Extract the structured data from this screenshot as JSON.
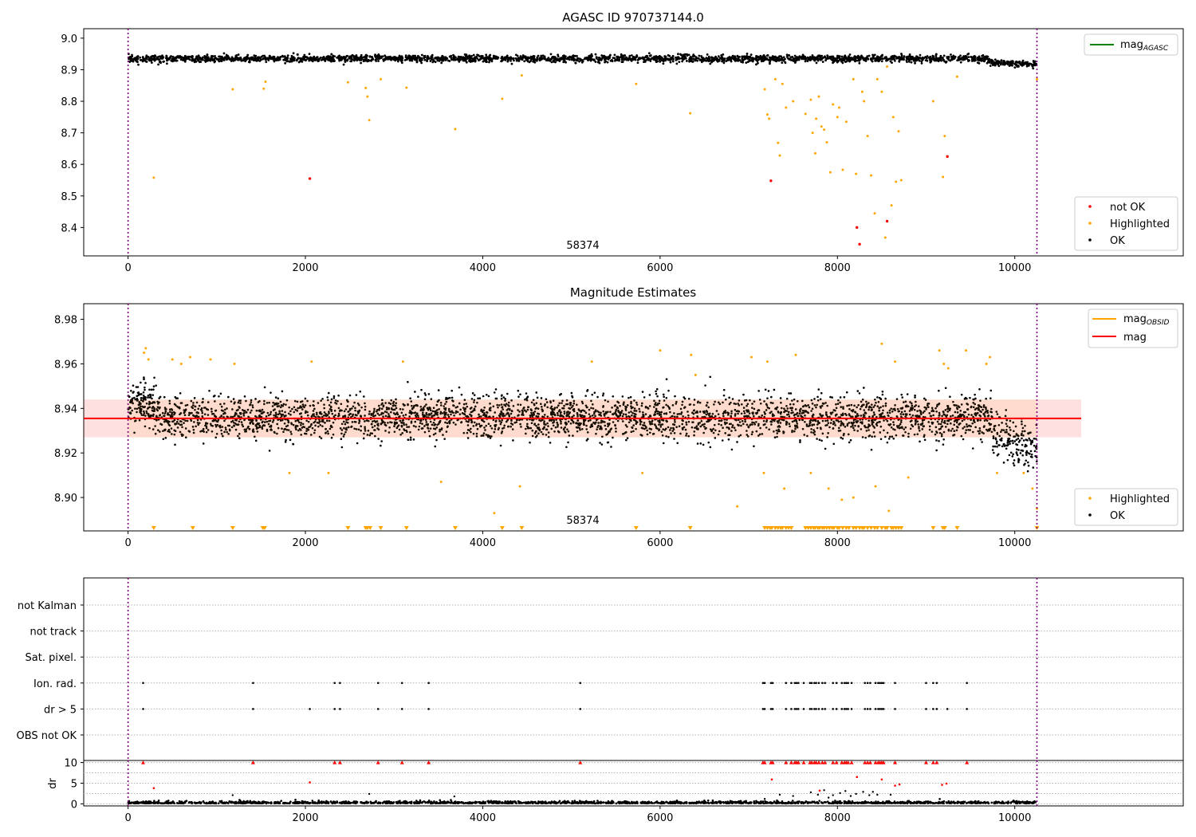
{
  "chart_data": [
    {
      "type": "scatter",
      "title": "AGASC ID 970737144.0",
      "xlim": [
        -500,
        11900
      ],
      "ylim": [
        8.31,
        9.03
      ],
      "xticks": [
        0,
        2000,
        4000,
        6000,
        8000,
        10000
      ],
      "yticks": [
        8.4,
        8.5,
        8.6,
        8.7,
        8.8,
        8.9,
        9.0
      ],
      "vlines": [
        0,
        10250
      ],
      "annotation": {
        "text": "58374",
        "x": 5100,
        "y": 8.335
      },
      "line_legend": [
        {
          "name": "mag",
          "subscript": "AGASC",
          "color": "#008000"
        }
      ],
      "series": [
        {
          "name": "not OK",
          "color": "#ff0000",
          "points": [
            [
              2050,
              8.555
            ],
            [
              7250,
              8.548
            ],
            [
              8220,
              8.4
            ],
            [
              8250,
              8.347
            ],
            [
              8560,
              8.42
            ],
            [
              9240,
              8.625
            ]
          ]
        },
        {
          "name": "Highlighted",
          "color": "#ffa500",
          "points": [
            [
              290,
              8.558
            ],
            [
              1180,
              8.838
            ],
            [
              1530,
              8.84
            ],
            [
              1550,
              8.862
            ],
            [
              2480,
              8.86
            ],
            [
              2680,
              8.842
            ],
            [
              2700,
              8.815
            ],
            [
              2720,
              8.74
            ],
            [
              2850,
              8.87
            ],
            [
              3140,
              8.843
            ],
            [
              3690,
              8.712
            ],
            [
              4220,
              8.808
            ],
            [
              4440,
              8.882
            ],
            [
              5730,
              8.855
            ],
            [
              6340,
              8.762
            ],
            [
              7180,
              8.838
            ],
            [
              7210,
              8.758
            ],
            [
              7230,
              8.745
            ],
            [
              7300,
              8.87
            ],
            [
              7330,
              8.668
            ],
            [
              7350,
              8.628
            ],
            [
              7380,
              8.855
            ],
            [
              7420,
              8.78
            ],
            [
              7500,
              8.8
            ],
            [
              7640,
              8.76
            ],
            [
              7700,
              8.805
            ],
            [
              7720,
              8.7
            ],
            [
              7750,
              8.635
            ],
            [
              7760,
              8.745
            ],
            [
              7790,
              8.815
            ],
            [
              7820,
              8.72
            ],
            [
              7850,
              8.71
            ],
            [
              7880,
              8.67
            ],
            [
              7920,
              8.575
            ],
            [
              7950,
              8.79
            ],
            [
              8000,
              8.75
            ],
            [
              8020,
              8.78
            ],
            [
              8060,
              8.583
            ],
            [
              8100,
              8.735
            ],
            [
              8180,
              8.87
            ],
            [
              8210,
              8.57
            ],
            [
              8280,
              8.83
            ],
            [
              8300,
              8.8
            ],
            [
              8340,
              8.69
            ],
            [
              8380,
              8.565
            ],
            [
              8420,
              8.445
            ],
            [
              8450,
              8.87
            ],
            [
              8500,
              8.83
            ],
            [
              8540,
              8.368
            ],
            [
              8560,
              8.91
            ],
            [
              8610,
              8.47
            ],
            [
              8630,
              8.75
            ],
            [
              8660,
              8.545
            ],
            [
              8690,
              8.705
            ],
            [
              8720,
              8.55
            ],
            [
              9080,
              8.8
            ],
            [
              9190,
              8.56
            ],
            [
              9210,
              8.69
            ],
            [
              9350,
              8.878
            ],
            [
              10250,
              8.87
            ]
          ]
        }
      ],
      "legend": [
        "not OK",
        "Highlighted",
        "OK"
      ]
    },
    {
      "type": "scatter",
      "title": "Magnitude Estimates",
      "xlim": [
        -500,
        11900
      ],
      "ylim": [
        8.885,
        8.987
      ],
      "xticks": [
        0,
        2000,
        4000,
        6000,
        8000,
        10000
      ],
      "yticks": [
        8.9,
        8.92,
        8.94,
        8.96,
        8.98
      ],
      "vlines": [
        0,
        10250
      ],
      "annotation": {
        "text": "58374",
        "x": 5100,
        "y": 8.8885
      },
      "mag": {
        "value": 8.9355,
        "band": [
          8.927,
          8.944
        ],
        "x_range": [
          -500,
          10750
        ],
        "color": "#ff0000"
      },
      "line_legend": [
        {
          "name": "mag",
          "subscript": "OBSID",
          "color": "#ffa500"
        },
        {
          "name": "mag",
          "subscript": "",
          "color": "#ff0000"
        }
      ],
      "series": [
        {
          "name": "Highlighted",
          "color": "#ffa500",
          "points": [
            [
              180,
              8.965
            ],
            [
              200,
              8.967
            ],
            [
              230,
              8.962
            ],
            [
              500,
              8.962
            ],
            [
              600,
              8.96
            ],
            [
              700,
              8.963
            ],
            [
              930,
              8.962
            ],
            [
              1200,
              8.96
            ],
            [
              1820,
              8.911
            ],
            [
              2070,
              8.961
            ],
            [
              2260,
              8.911
            ],
            [
              3100,
              8.961
            ],
            [
              3530,
              8.907
            ],
            [
              4130,
              8.893
            ],
            [
              4420,
              8.905
            ],
            [
              5230,
              8.961
            ],
            [
              5800,
              8.911
            ],
            [
              6000,
              8.966
            ],
            [
              6350,
              8.964
            ],
            [
              6400,
              8.955
            ],
            [
              6870,
              8.896
            ],
            [
              7030,
              8.963
            ],
            [
              7170,
              8.911
            ],
            [
              7210,
              8.961
            ],
            [
              7400,
              8.904
            ],
            [
              7530,
              8.964
            ],
            [
              7700,
              8.911
            ],
            [
              7900,
              8.904
            ],
            [
              8050,
              8.899
            ],
            [
              8180,
              8.9
            ],
            [
              8430,
              8.905
            ],
            [
              8500,
              8.969
            ],
            [
              8580,
              8.894
            ],
            [
              8650,
              8.961
            ],
            [
              8800,
              8.909
            ],
            [
              9150,
              8.966
            ],
            [
              9200,
              8.96
            ],
            [
              9250,
              8.958
            ],
            [
              9450,
              8.966
            ],
            [
              9680,
              8.96
            ],
            [
              9720,
              8.963
            ],
            [
              9800,
              8.911
            ],
            [
              10100,
              8.911
            ],
            [
              10200,
              8.904
            ],
            [
              10250,
              8.895
            ]
          ]
        },
        {
          "name": "Highlighted (below range)",
          "color": "#ffa500",
          "x": [
            290,
            730,
            1180,
            1520,
            1540,
            2480,
            2680,
            2700,
            2730,
            2850,
            3140,
            3690,
            4220,
            4440,
            5730,
            6340,
            7180,
            7210,
            7240,
            7260,
            7300,
            7330,
            7360,
            7380,
            7420,
            7450,
            7480,
            7640,
            7670,
            7700,
            7730,
            7750,
            7780,
            7800,
            7830,
            7850,
            7880,
            7910,
            7940,
            7960,
            8000,
            8020,
            8060,
            8100,
            8130,
            8180,
            8210,
            8250,
            8280,
            8300,
            8340,
            8380,
            8420,
            8450,
            8500,
            8540,
            8560,
            8610,
            8630,
            8660,
            8690,
            8720,
            9080,
            9190,
            9210,
            9350,
            10250
          ]
        }
      ],
      "legend": [
        "Highlighted",
        "OK"
      ]
    },
    {
      "type": "scatter",
      "title": "",
      "xlim": [
        -500,
        11900
      ],
      "categories": [
        "not Kalman",
        "not track",
        "Sat. pixel.",
        "Ion. rad.",
        "dr > 5",
        "OBS not OK"
      ],
      "vlines": [
        0,
        10250
      ],
      "flags": {
        "Ion. rad.": [
          170,
          1410,
          2330,
          2390,
          2820,
          3090,
          3390,
          5100,
          7160,
          7180,
          7250,
          7270,
          7420,
          7480,
          7520,
          7540,
          7560,
          7620,
          7690,
          7710,
          7740,
          7760,
          7790,
          7830,
          7860,
          7950,
          7990,
          8050,
          8080,
          8100,
          8120,
          8160,
          8310,
          8340,
          8370,
          8430,
          8460,
          8480,
          8500,
          8520,
          8650,
          9000,
          9080,
          9120,
          9460
        ],
        "dr > 5": [
          170,
          1410,
          2050,
          2330,
          2390,
          2820,
          3090,
          3390,
          5100,
          7160,
          7180,
          7250,
          7270,
          7420,
          7480,
          7520,
          7540,
          7560,
          7620,
          7690,
          7710,
          7740,
          7760,
          7790,
          7830,
          7860,
          7950,
          7990,
          8050,
          8080,
          8100,
          8120,
          8160,
          8310,
          8340,
          8370,
          8430,
          8460,
          8480,
          8500,
          8520,
          8650,
          9000,
          9080,
          9120,
          9240,
          9460
        ]
      }
    },
    {
      "type": "scatter",
      "title": "",
      "ylabel": "dr",
      "xlim": [
        -500,
        11900
      ],
      "ylim": [
        -0.5,
        10.5
      ],
      "xticks": [
        0,
        2000,
        4000,
        6000,
        8000,
        10000
      ],
      "yticks": [
        0,
        5,
        10
      ],
      "vlines": [
        0,
        10250
      ],
      "series": [
        {
          "name": "dr capped",
          "color": "#ff0000",
          "x": [
            170,
            1410,
            2330,
            2390,
            2820,
            3090,
            3390,
            5100,
            7160,
            7180,
            7250,
            7270,
            7420,
            7480,
            7520,
            7540,
            7560,
            7620,
            7690,
            7710,
            7740,
            7760,
            7790,
            7830,
            7860,
            7950,
            7990,
            8050,
            8080,
            8100,
            8120,
            8160,
            8310,
            8340,
            8370,
            8430,
            8460,
            8480,
            8500,
            8520,
            8650,
            9000,
            9080,
            9120,
            9460
          ]
        },
        {
          "name": "dr high",
          "color": "#ff0000",
          "points": [
            [
              290,
              3.8
            ],
            [
              2050,
              5.2
            ],
            [
              7260,
              5.9
            ],
            [
              7800,
              3.2
            ],
            [
              8220,
              6.5
            ],
            [
              8500,
              5.9
            ],
            [
              8650,
              4.4
            ],
            [
              8700,
              4.7
            ],
            [
              9180,
              4.6
            ],
            [
              9230,
              4.9
            ]
          ]
        },
        {
          "name": "dr mid",
          "color": "#000000",
          "points": [
            [
              1180,
              2.1
            ],
            [
              2720,
              2.4
            ],
            [
              3680,
              1.8
            ],
            [
              7180,
              1.2
            ],
            [
              7350,
              2.2
            ],
            [
              7500,
              1.9
            ],
            [
              7700,
              2.8
            ],
            [
              7780,
              2.2
            ],
            [
              7850,
              3.3
            ],
            [
              7900,
              1.5
            ],
            [
              7950,
              2.1
            ],
            [
              8030,
              2.6
            ],
            [
              8090,
              3.1
            ],
            [
              8150,
              1.9
            ],
            [
              8210,
              2.4
            ],
            [
              8290,
              2.9
            ],
            [
              8360,
              2.1
            ],
            [
              8400,
              2.9
            ],
            [
              8450,
              2.2
            ],
            [
              8600,
              2.2
            ]
          ]
        }
      ]
    }
  ]
}
